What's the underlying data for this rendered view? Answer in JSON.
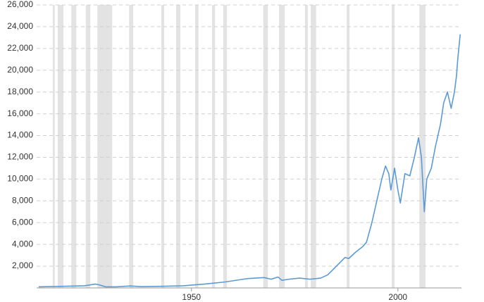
{
  "chart_data": {
    "type": "line",
    "x": [
      1913.0,
      1919.0,
      1924.1,
      1926.7,
      1927.5,
      1929.2,
      1931.8,
      1935.2,
      1937.8,
      1942.9,
      1948.0,
      1953.1,
      1958.2,
      1963.4,
      1967.6,
      1969.3,
      1971.0,
      1971.9,
      1973.6,
      1976.2,
      1978.7,
      1981.3,
      1983.0,
      1983.8,
      1985.9,
      1987.2,
      1988.1,
      1989.8,
      1991.5,
      1992.4,
      1993.7,
      1994.9,
      1996.1,
      1997.0,
      1997.8,
      1998.3,
      1999.2,
      2000.0,
      2000.6,
      2001.7,
      2002.9,
      2004.0,
      2005.0,
      2005.7,
      2006.4,
      2007.0,
      2008.1,
      2009.1,
      2010.3,
      2011.1,
      2012.0,
      2012.9,
      2013.7,
      2014.2,
      2014.5,
      2015.1
    ],
    "series": [
      {
        "color": "#5b9bd5",
        "values": [
          100,
          150,
          200,
          350,
          300,
          100,
          100,
          180,
          120,
          150,
          200,
          350,
          550,
          850,
          950,
          800,
          1000,
          700,
          800,
          900,
          800,
          900,
          1200,
          1500,
          2300,
          2800,
          2700,
          3300,
          3800,
          4200,
          6000,
          8000,
          10000,
          11200,
          10500,
          9000,
          11000,
          9000,
          7800,
          10500,
          10300,
          12000,
          13800,
          12000,
          7000,
          10000,
          11000,
          13000,
          15000,
          17000,
          18000,
          16500,
          18000,
          19500,
          21000,
          23300
        ]
      }
    ],
    "recessions": [
      [
        1916.4,
        1916.9
      ],
      [
        1917.6,
        1919.0
      ],
      [
        1920.9,
        1922.1
      ],
      [
        1924.4,
        1925.5
      ],
      [
        1927.2,
        1930.8
      ],
      [
        1934.9,
        1935.9
      ],
      [
        1942.7,
        1943.4
      ],
      [
        1946.3,
        1947.3
      ],
      [
        1950.9,
        1951.7
      ],
      [
        1955.0,
        1955.7
      ],
      [
        1957.7,
        1958.6
      ],
      [
        1967.4,
        1968.5
      ],
      [
        1971.2,
        1972.6
      ],
      [
        1977.5,
        1978.2
      ],
      [
        1978.9,
        1980.2
      ],
      [
        1987.6,
        1988.3
      ],
      [
        1998.5,
        1999.2
      ],
      [
        2005.2,
        2006.7
      ]
    ],
    "recession_color": "#e3e3e3",
    "xlim": [
      1912.5,
      2015.4
    ],
    "xticks": [
      1950,
      2000
    ],
    "ylim": [
      0,
      26000
    ],
    "yticks": [
      {
        "value": 2000,
        "label": "2,000"
      },
      {
        "value": 4000,
        "label": "4,000"
      },
      {
        "value": 6000,
        "label": "6,000"
      },
      {
        "value": 8000,
        "label": "8,000"
      },
      {
        "value": 10000,
        "label": "10,000"
      },
      {
        "value": 12000,
        "label": "12,000"
      },
      {
        "value": 14000,
        "label": "14,000"
      },
      {
        "value": 16000,
        "label": "16,000"
      },
      {
        "value": 18000,
        "label": "18,000"
      },
      {
        "value": 20000,
        "label": "20,000"
      },
      {
        "value": 22000,
        "label": "22,000"
      },
      {
        "value": 24000,
        "label": "24,000"
      },
      {
        "value": 26000,
        "label": "26,000"
      }
    ],
    "grid": true
  }
}
